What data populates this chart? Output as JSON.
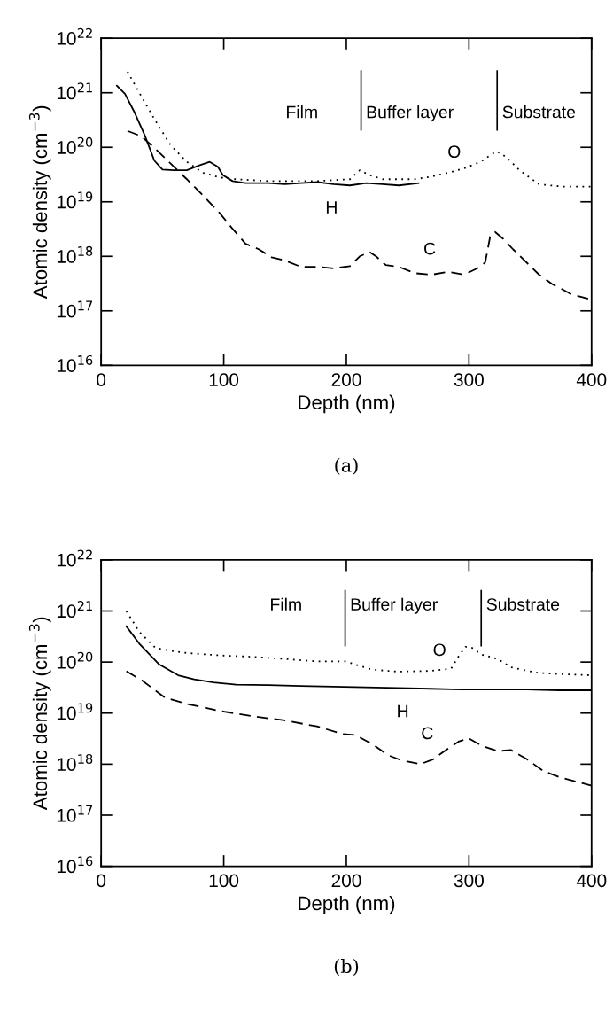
{
  "chart_data": [
    {
      "type": "line",
      "xlabel": "Depth (nm)",
      "ylabel": "Atomic density (cm$^{−3}$)",
      "log": "y",
      "xlim": [
        0,
        400
      ],
      "xticks": [
        0,
        100,
        200,
        300,
        400
      ],
      "ylim": [
        1e+16,
        1e+22
      ],
      "yticks": [
        {
          "value": 1e+16,
          "label": "10$^{16}$"
        },
        {
          "value": 1e+17,
          "label": "10$^{17}$"
        },
        {
          "value": 1e+18,
          "label": "10$^{18}$"
        },
        {
          "value": 1e+19,
          "label": "10$^{19}$"
        },
        {
          "value": 1e+20,
          "label": "10$^{20}$"
        },
        {
          "value": 1e+21,
          "label": "10$^{21}$"
        },
        {
          "value": 1e+22,
          "label": "10$^{22}$"
        }
      ],
      "grid": false,
      "legend": false,
      "marker": "none",
      "series": [
        {
          "name": "H",
          "color": "#000000",
          "line_style": "solid",
          "x": [
            12.8,
            19.4,
            27.4,
            35.4,
            43.4,
            50.0,
            59.3,
            69.9,
            80.6,
            88.6,
            95.2,
            99.2,
            107.2,
            117.8,
            136.4,
            149.7,
            163.0,
            176.3,
            189.6,
            202.9,
            216.2,
            229.5,
            242.8,
            258.8
          ],
          "values": [
            1.35e+21,
            9.6e+20,
            4.3e+20,
            1.7e+20,
            5.7e+19,
            3.9e+19,
            3.8e+19,
            3.8e+19,
            4.7e+19,
            5.4e+19,
            4.4e+19,
            3.1e+19,
            2.4e+19,
            2.2e+19,
            2.2e+19,
            2.1e+19,
            2.2e+19,
            2.3e+19,
            2.1e+19,
            2e+19,
            2.2e+19,
            2.1e+19,
            2e+19,
            2.2e+19
          ]
        },
        {
          "name": "C",
          "color": "#000000",
          "line_style": "dashed",
          "x": [
            21.5,
            32.7,
            43.4,
            59.3,
            69.9,
            83.2,
            96.5,
            107.2,
            117.8,
            128.5,
            139.1,
            149.7,
            163.0,
            176.3,
            189.6,
            202.9,
            210.9,
            218.9,
            224.2,
            232.2,
            242.8,
            256.1,
            269.4,
            282.7,
            296.0,
            309.3,
            313.3,
            317.3,
            321.3,
            327.9,
            335.9,
            349.2,
            357.2,
            367.8,
            375.8,
            383.8,
            391.8,
            399.7
          ],
          "values": [
            2e+20,
            1.6e+20,
            9.8e+19,
            4.4e+19,
            2.6e+19,
            1.3e+19,
            6.3e+18,
            3.2e+18,
            1.7e+18,
            1.35e+18,
            9.6e+17,
            8.4e+17,
            6.4e+17,
            6.4e+17,
            6e+17,
            6.6e+17,
            1e+18,
            1.2e+18,
            1e+18,
            6.9e+17,
            6.4e+17,
            4.9e+17,
            4.6e+17,
            5.2e+17,
            4.6e+17,
            6.4e+17,
            7.8e+17,
            2.3e+18,
            2.8e+18,
            2.1e+18,
            1.35e+18,
            6.9e+17,
            4.6e+17,
            3.1e+17,
            2.5e+17,
            2e+17,
            1.8e+17,
            1.6e+17
          ]
        },
        {
          "name": "O",
          "color": "#000000",
          "line_style": "dotted",
          "x": [
            21.5,
            30.1,
            43.4,
            56.6,
            69.9,
            83.2,
            96.5,
            109.8,
            136.4,
            176.3,
            202.9,
            210.9,
            218.9,
            229.5,
            256.1,
            269.4,
            282.7,
            296.0,
            309.3,
            322.6,
            330.6,
            341.2,
            357.2,
            375.8,
            400.0
          ],
          "values": [
            2.45e+21,
            1.1e+21,
            3.3e+20,
            1.1e+20,
            5.4e+19,
            3.4e+19,
            2.8e+19,
            2.6e+19,
            2.4e+19,
            2.4e+19,
            2.6e+19,
            3.8e+19,
            3.1e+19,
            2.6e+19,
            2.6e+19,
            2.9e+19,
            3.4e+19,
            4.1e+19,
            5.4e+19,
            8.5e+19,
            6.6e+19,
            3.8e+19,
            2.1e+19,
            1.9e+19,
            1.9e+19
          ]
        }
      ],
      "ref_lines": [
        {
          "axis": "x",
          "value": 212,
          "color": "#000000",
          "line_style": "solid"
        },
        {
          "axis": "x",
          "value": 323,
          "color": "#000000",
          "line_style": "solid"
        }
      ],
      "annotations": [
        "Film",
        "Buffer layer",
        "Substrate",
        "(a)"
      ]
    },
    {
      "type": "line",
      "xlabel": "Depth (nm)",
      "ylabel": "Atomic density (cm$^{−3}$)",
      "log": "y",
      "xlim": [
        0,
        400
      ],
      "xticks": [
        0,
        100,
        200,
        300,
        400
      ],
      "ylim": [
        1e+16,
        1e+22
      ],
      "yticks": [
        {
          "value": 1e+16,
          "label": "10$^{16}$"
        },
        {
          "value": 1e+17,
          "label": "10$^{17}$"
        },
        {
          "value": 1e+18,
          "label": "10$^{18}$"
        },
        {
          "value": 1e+19,
          "label": "10$^{19}$"
        },
        {
          "value": 1e+20,
          "label": "10$^{20}$"
        },
        {
          "value": 1e+21,
          "label": "10$^{21}$"
        },
        {
          "value": 1e+22,
          "label": "10$^{22}$"
        }
      ],
      "grid": false,
      "legend": false,
      "marker": "none",
      "series": [
        {
          "name": "H",
          "color": "#000000",
          "line_style": "solid",
          "x": [
            20.6,
            31.1,
            47.0,
            62.8,
            75.9,
            91.7,
            110.1,
            136.5,
            162.9,
            189.2,
            215.5,
            241.9,
            268.2,
            294.6,
            320.9,
            347.3,
            373.6,
            400.0
          ],
          "values": [
            5e+20,
            2.3e+20,
            9.1e+19,
            5.5e+19,
            4.6e+19,
            4e+19,
            3.6e+19,
            3.55e+19,
            3.4e+19,
            3.3e+19,
            3.2e+19,
            3.1e+19,
            3e+19,
            2.9e+19,
            2.9e+19,
            2.9e+19,
            2.8e+19,
            2.8e+19
          ]
        },
        {
          "name": "C",
          "color": "#000000",
          "line_style": "dashed",
          "x": [
            20.6,
            33.7,
            52.2,
            70.6,
            97.0,
            123.3,
            149.7,
            176.0,
            197.1,
            207.6,
            220.8,
            234.0,
            244.5,
            260.3,
            270.9,
            281.4,
            292.0,
            299.9,
            310.4,
            323.6,
            334.1,
            347.3,
            360.4,
            373.6,
            386.8,
            400.0
          ],
          "values": [
            6.6e+19,
            4.3e+19,
            2e+19,
            1.5e+19,
            1.1e+19,
            8.7e+18,
            7.2e+18,
            5.5e+18,
            3.9e+18,
            3.7e+18,
            2.5e+18,
            1.5e+18,
            1.2e+18,
            1e+18,
            1.25e+18,
            1.9e+18,
            2.8e+18,
            3.2e+18,
            2.3e+18,
            1.8e+18,
            1.9e+18,
            1.25e+18,
            7.4e+17,
            5.6e+17,
            4.6e+17,
            3.8e+17
          ]
        },
        {
          "name": "O",
          "color": "#000000",
          "line_style": "dotted",
          "x": [
            20.6,
            31.1,
            44.3,
            57.4,
            70.6,
            97.0,
            123.3,
            149.7,
            176.0,
            199.7,
            210.3,
            220.8,
            241.9,
            268.2,
            285.4,
            292.0,
            297.2,
            302.5,
            310.4,
            323.6,
            334.1,
            355.2,
            373.6,
            400.0
          ],
          "values": [
            1e+21,
            3.9e+20,
            1.9e+20,
            1.65e+20,
            1.5e+20,
            1.35e+20,
            1.27e+20,
            1.15e+20,
            1.03e+20,
            1.03e+20,
            8.5e+19,
            7.1e+19,
            6.5e+19,
            6.7e+19,
            7.4e+19,
            1.35e+20,
            2e+20,
            1.9e+20,
            1.4e+20,
            1.15e+20,
            7.9e+19,
            6.2e+19,
            5.8e+19,
            5.5e+19
          ]
        }
      ],
      "ref_lines": [
        {
          "axis": "x",
          "value": 199,
          "color": "#000000",
          "line_style": "solid"
        },
        {
          "axis": "x",
          "value": 310,
          "color": "#000000",
          "line_style": "solid"
        }
      ],
      "annotations": [
        "Film",
        "Buffer layer",
        "Substrate",
        "(b)"
      ]
    }
  ]
}
